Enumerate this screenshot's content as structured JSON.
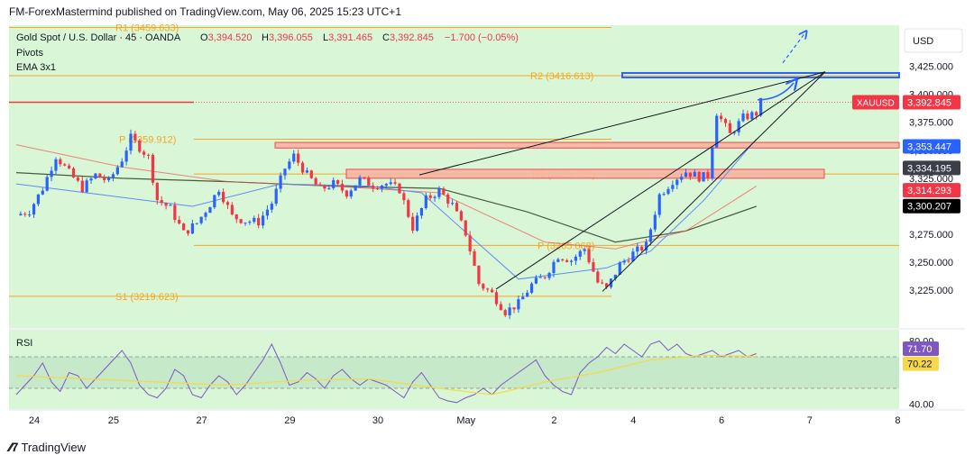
{
  "header": {
    "published": "FM-ForexMastermind published on TradingView.com, May 06, 2025 15:23 UTC+1",
    "symbol_line": "Gold Spot / U.S. Dollar · 45 · OANDA",
    "ohlc": {
      "o": "3,394.520",
      "h": "3,396.055",
      "l": "3,391.465",
      "c": "3,392.845",
      "chg": "−1.700 (−0.05%)"
    },
    "indicators": [
      "Pivots",
      "EMA 3x1"
    ]
  },
  "footer": {
    "brand": "TradingView"
  },
  "colors": {
    "background": "#d9f7d6",
    "up": "#2962ff",
    "down": "#f23645",
    "pivot": "#f5a623",
    "zone_fill": "#f7b6a3",
    "zone_stroke": "#f23645",
    "target_zone": "#2962ff",
    "rsi_line": "#7e57c2",
    "rsi_ma": "#f5d94a"
  },
  "chart_data": [
    {
      "type": "candlestick",
      "symbol": "XAUUSD",
      "timeframe": "45",
      "currency": "USD",
      "y_ticks": [
        "3,225.000",
        "3,250.000",
        "3,275.000",
        "3,300.000",
        "3,325.000",
        "3,350.000",
        "3,375.000",
        "3,400.000",
        "3,425.000"
      ],
      "y_range": [
        3193,
        3460
      ],
      "x_labels": [
        "24",
        "25",
        "27",
        "29",
        "30",
        "May",
        "2",
        "4",
        "6",
        "7",
        "8"
      ],
      "price_path": [
        [
          0,
          3292
        ],
        [
          1.5,
          3296
        ],
        [
          3,
          3316
        ],
        [
          4.5,
          3345
        ],
        [
          6,
          3330
        ],
        [
          7.5,
          3316
        ],
        [
          9,
          3328
        ],
        [
          10.5,
          3322
        ],
        [
          12,
          3342
        ],
        [
          13,
          3361
        ],
        [
          15,
          3344
        ],
        [
          16,
          3306
        ],
        [
          17.5,
          3298
        ],
        [
          19,
          3276
        ],
        [
          20.5,
          3285
        ],
        [
          22,
          3302
        ],
        [
          23,
          3316
        ],
        [
          24.5,
          3291
        ],
        [
          26,
          3287
        ],
        [
          27.5,
          3286
        ],
        [
          29,
          3303
        ],
        [
          30.5,
          3334
        ],
        [
          31.5,
          3345
        ],
        [
          33,
          3328
        ],
        [
          34.5,
          3315
        ],
        [
          36,
          3320
        ],
        [
          37.5,
          3312
        ],
        [
          39,
          3324
        ],
        [
          40.5,
          3319
        ],
        [
          42,
          3320
        ],
        [
          43.5,
          3315
        ],
        [
          45,
          3281
        ],
        [
          46.5,
          3306
        ],
        [
          48,
          3314
        ],
        [
          49.5,
          3301
        ],
        [
          51,
          3276
        ],
        [
          52.5,
          3231
        ],
        [
          54,
          3222
        ],
        [
          55.5,
          3206
        ],
        [
          57,
          3213
        ],
        [
          58.5,
          3230
        ],
        [
          60,
          3238
        ],
        [
          61.5,
          3256
        ],
        [
          63,
          3252
        ],
        [
          64.5,
          3262
        ],
        [
          66,
          3232
        ],
        [
          67,
          3226
        ],
        [
          68.5,
          3248
        ],
        [
          70,
          3258
        ],
        [
          71.5,
          3265
        ],
        [
          73,
          3310
        ],
        [
          74.5,
          3323
        ],
        [
          76,
          3331
        ],
        [
          77.5,
          3326
        ],
        [
          78.5,
          3327
        ],
        [
          79.5,
          3384
        ],
        [
          81,
          3364
        ],
        [
          82.5,
          3379
        ],
        [
          84,
          3383
        ],
        [
          84.5,
          3393
        ]
      ],
      "levels": [
        {
          "label": "R1 (3459.633)",
          "value": 3459.633
        },
        {
          "label": "R2 (3416.613)",
          "value": 3416.613
        },
        {
          "label": "P (3359.912)",
          "value": 3359.912
        },
        {
          "label": "R1 (3328.782)",
          "value": 3328.782
        },
        {
          "label": "P (3265.068)",
          "value": 3265.068
        },
        {
          "label": "S1 (3219.623)",
          "value": 3219.623
        }
      ],
      "price_tags": [
        {
          "label": "XAUUSD",
          "value": "3,392.845"
        },
        {
          "value": "3,353.447"
        },
        {
          "value": "3,334.195"
        },
        {
          "value": "3,314.293"
        },
        {
          "value": "3,300.207"
        }
      ],
      "ema_fast": [
        [
          0,
          3320
        ],
        [
          10,
          3310
        ],
        [
          20,
          3300
        ],
        [
          30,
          3320
        ],
        [
          40,
          3318
        ],
        [
          46,
          3312
        ],
        [
          52,
          3270
        ],
        [
          57,
          3235
        ],
        [
          62,
          3240
        ],
        [
          67,
          3245
        ],
        [
          72,
          3260
        ],
        [
          78,
          3305
        ],
        [
          84,
          3360
        ]
      ],
      "ema_mid": [
        [
          0,
          3355
        ],
        [
          12,
          3335
        ],
        [
          24,
          3322
        ],
        [
          36,
          3318
        ],
        [
          48,
          3312
        ],
        [
          54,
          3290
        ],
        [
          60,
          3268
        ],
        [
          68,
          3262
        ],
        [
          76,
          3278
        ],
        [
          84,
          3318
        ]
      ],
      "ema_slow": [
        [
          0,
          3330
        ],
        [
          12,
          3325
        ],
        [
          24,
          3322
        ],
        [
          36,
          3318
        ],
        [
          48,
          3316
        ],
        [
          58,
          3295
        ],
        [
          68,
          3268
        ],
        [
          76,
          3278
        ],
        [
          84,
          3300
        ]
      ]
    },
    {
      "type": "line",
      "title": "RSI",
      "y_ticks": [
        "80.00",
        "40.00"
      ],
      "y_range": [
        38,
        86
      ],
      "band": [
        70,
        50
      ],
      "values": [
        [
          0,
          46
        ],
        [
          1,
          52
        ],
        [
          2,
          58
        ],
        [
          3,
          66
        ],
        [
          4,
          54
        ],
        [
          5,
          48
        ],
        [
          6,
          60
        ],
        [
          7,
          58
        ],
        [
          8,
          50
        ],
        [
          9,
          56
        ],
        [
          10,
          62
        ],
        [
          11,
          68
        ],
        [
          12,
          74
        ],
        [
          13,
          66
        ],
        [
          14,
          52
        ],
        [
          15,
          46
        ],
        [
          16,
          44
        ],
        [
          17,
          50
        ],
        [
          18,
          62
        ],
        [
          19,
          58
        ],
        [
          20,
          46
        ],
        [
          21,
          44
        ],
        [
          22,
          52
        ],
        [
          23,
          58
        ],
        [
          24,
          54
        ],
        [
          25,
          46
        ],
        [
          26,
          52
        ],
        [
          27,
          60
        ],
        [
          28,
          68
        ],
        [
          29,
          78
        ],
        [
          30,
          66
        ],
        [
          31,
          52
        ],
        [
          32,
          54
        ],
        [
          33,
          60
        ],
        [
          34,
          56
        ],
        [
          35,
          50
        ],
        [
          36,
          58
        ],
        [
          37,
          62
        ],
        [
          38,
          56
        ],
        [
          39,
          52
        ],
        [
          40,
          56
        ],
        [
          41,
          54
        ],
        [
          42,
          52
        ],
        [
          43,
          48
        ],
        [
          44,
          44
        ],
        [
          45,
          54
        ],
        [
          46,
          60
        ],
        [
          47,
          52
        ],
        [
          48,
          44
        ],
        [
          49,
          42
        ],
        [
          50,
          41
        ],
        [
          51,
          44
        ],
        [
          52,
          46
        ],
        [
          53,
          50
        ],
        [
          54,
          46
        ],
        [
          55,
          52
        ],
        [
          56,
          56
        ],
        [
          57,
          60
        ],
        [
          58,
          64
        ],
        [
          59,
          68
        ],
        [
          60,
          58
        ],
        [
          61,
          52
        ],
        [
          62,
          48
        ],
        [
          63,
          46
        ],
        [
          64,
          60
        ],
        [
          65,
          66
        ],
        [
          66,
          70
        ],
        [
          67,
          76
        ],
        [
          68,
          72
        ],
        [
          69,
          78
        ],
        [
          70,
          74
        ],
        [
          71,
          70
        ],
        [
          72,
          78
        ],
        [
          73,
          80
        ],
        [
          74,
          74
        ],
        [
          75,
          78
        ],
        [
          76,
          72
        ],
        [
          77,
          70
        ],
        [
          78,
          72
        ],
        [
          79,
          74
        ],
        [
          80,
          70
        ],
        [
          81,
          72
        ],
        [
          82,
          74
        ],
        [
          83,
          70
        ],
        [
          84,
          72
        ]
      ],
      "ma": [
        [
          0,
          58
        ],
        [
          8,
          56
        ],
        [
          16,
          54
        ],
        [
          24,
          52
        ],
        [
          32,
          55
        ],
        [
          40,
          56
        ],
        [
          48,
          50
        ],
        [
          54,
          46
        ],
        [
          60,
          54
        ],
        [
          66,
          60
        ],
        [
          72,
          68
        ],
        [
          78,
          71
        ],
        [
          84,
          70.22
        ]
      ],
      "last_values": [
        "71.70",
        "70.22"
      ]
    }
  ]
}
